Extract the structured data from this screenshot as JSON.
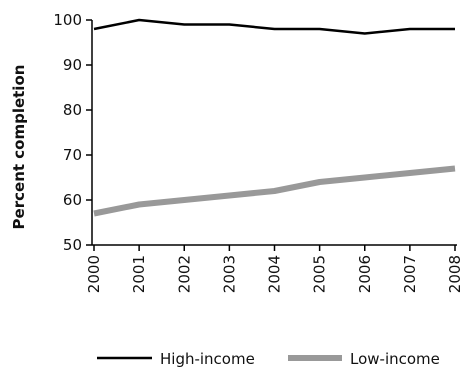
{
  "chart_data": {
    "type": "line",
    "title": "",
    "xlabel": "",
    "ylabel": "Percent completion",
    "categories": [
      "2000",
      "2001",
      "2002",
      "2003",
      "2004",
      "2005",
      "2006",
      "2007",
      "2008"
    ],
    "ylim": [
      50,
      100
    ],
    "yticks": [
      "50",
      "60",
      "70",
      "80",
      "90",
      "100"
    ],
    "grid": false,
    "legend_position": "bottom",
    "series": [
      {
        "name": "High-income",
        "color": "#000000",
        "values": [
          98,
          100,
          99,
          99,
          98,
          98,
          97,
          98,
          98
        ]
      },
      {
        "name": "Low-income",
        "color": "#999999",
        "values": [
          57,
          59,
          60,
          61,
          62,
          64,
          65,
          66,
          67
        ]
      }
    ]
  }
}
